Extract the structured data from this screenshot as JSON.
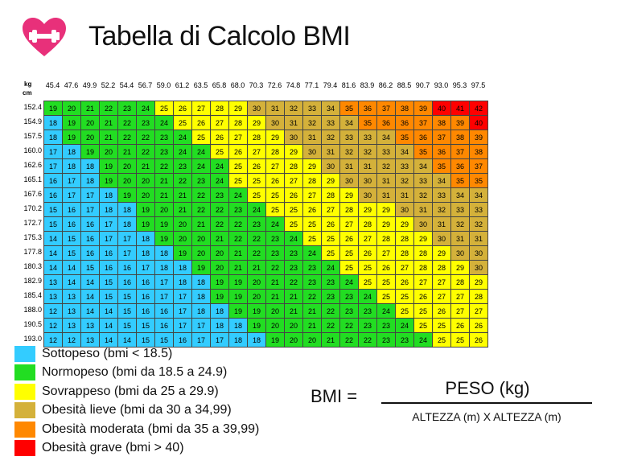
{
  "header": {
    "title": "Tabella di Calcolo BMI",
    "logo_icon": "heart-dumbbell-icon"
  },
  "table": {
    "weight_unit": "kg",
    "height_unit": "cm",
    "weights": [
      "45.4",
      "47.6",
      "49.9",
      "52.2",
      "54.4",
      "56.7",
      "59.0",
      "61.2",
      "63.5",
      "65.8",
      "68.0",
      "70.3",
      "72.6",
      "74.8",
      "77.1",
      "79.4",
      "81.6",
      "83.9",
      "86.2",
      "88.5",
      "90.7",
      "93.0",
      "95.3",
      "97.5"
    ],
    "heights": [
      "152.4",
      "154.9",
      "157.5",
      "160.0",
      "162.6",
      "165.1",
      "167.6",
      "170.2",
      "172.7",
      "175.3",
      "177.8",
      "180.3",
      "182.9",
      "185.4",
      "188.0",
      "190.5",
      "193.0"
    ],
    "rows": [
      [
        19,
        20,
        21,
        22,
        23,
        24,
        25,
        26,
        27,
        28,
        29,
        30,
        31,
        32,
        33,
        34,
        35,
        36,
        37,
        38,
        39,
        40,
        41,
        42
      ],
      [
        18,
        19,
        20,
        21,
        22,
        23,
        24,
        25,
        26,
        27,
        28,
        29,
        30,
        31,
        32,
        33,
        34,
        35,
        36,
        36,
        37,
        38,
        39,
        40
      ],
      [
        18,
        19,
        20,
        21,
        22,
        22,
        23,
        24,
        25,
        26,
        27,
        28,
        29,
        30,
        31,
        32,
        33,
        33,
        34,
        35,
        36,
        37,
        38,
        39
      ],
      [
        17,
        18,
        19,
        20,
        21,
        22,
        23,
        24,
        24,
        25,
        26,
        27,
        28,
        29,
        30,
        31,
        32,
        32,
        33,
        34,
        35,
        36,
        37,
        38
      ],
      [
        17,
        18,
        18,
        19,
        20,
        21,
        22,
        23,
        24,
        24,
        25,
        26,
        27,
        28,
        29,
        30,
        31,
        31,
        32,
        33,
        34,
        35,
        36,
        37
      ],
      [
        16,
        17,
        18,
        19,
        20,
        20,
        21,
        22,
        23,
        24,
        25,
        25,
        26,
        27,
        28,
        29,
        30,
        30,
        31,
        32,
        33,
        34,
        35,
        35
      ],
      [
        16,
        17,
        17,
        18,
        19,
        20,
        21,
        21,
        22,
        23,
        24,
        25,
        25,
        26,
        27,
        28,
        29,
        30,
        31,
        31,
        32,
        33,
        34,
        34
      ],
      [
        15,
        16,
        17,
        18,
        18,
        19,
        20,
        21,
        22,
        22,
        23,
        24,
        25,
        25,
        26,
        27,
        28,
        29,
        29,
        30,
        31,
        32,
        33,
        33
      ],
      [
        15,
        16,
        16,
        17,
        18,
        19,
        19,
        20,
        21,
        22,
        22,
        23,
        24,
        25,
        25,
        26,
        27,
        28,
        29,
        29,
        30,
        31,
        32,
        32
      ],
      [
        14,
        15,
        16,
        17,
        17,
        18,
        19,
        20,
        20,
        21,
        22,
        22,
        23,
        24,
        25,
        25,
        26,
        27,
        28,
        28,
        29,
        30,
        31,
        31
      ],
      [
        14,
        15,
        16,
        16,
        17,
        18,
        18,
        19,
        20,
        20,
        21,
        22,
        23,
        23,
        24,
        25,
        25,
        26,
        27,
        28,
        28,
        29,
        30,
        30
      ],
      [
        14,
        14,
        15,
        16,
        16,
        17,
        18,
        18,
        19,
        20,
        21,
        21,
        22,
        23,
        23,
        24,
        25,
        25,
        26,
        27,
        28,
        28,
        29,
        30
      ],
      [
        13,
        14,
        14,
        15,
        16,
        16,
        17,
        18,
        18,
        19,
        19,
        20,
        21,
        22,
        23,
        23,
        24,
        25,
        25,
        26,
        27,
        27,
        28,
        29
      ],
      [
        13,
        13,
        14,
        15,
        15,
        16,
        17,
        17,
        18,
        19,
        19,
        20,
        21,
        21,
        22,
        23,
        23,
        24,
        25,
        25,
        26,
        27,
        27,
        28
      ],
      [
        12,
        13,
        14,
        14,
        15,
        16,
        16,
        17,
        18,
        18,
        19,
        19,
        20,
        21,
        21,
        22,
        23,
        23,
        24,
        25,
        25,
        26,
        27,
        27
      ],
      [
        12,
        13,
        13,
        14,
        15,
        15,
        16,
        17,
        17,
        18,
        18,
        19,
        20,
        20,
        21,
        22,
        22,
        23,
        23,
        24,
        25,
        25,
        26,
        26
      ],
      [
        12,
        12,
        13,
        14,
        14,
        15,
        15,
        16,
        17,
        17,
        18,
        18,
        19,
        20,
        20,
        21,
        22,
        22,
        23,
        23,
        24,
        25,
        25,
        26
      ]
    ]
  },
  "legend": [
    {
      "label": "Sottopeso (bmi < 18.5)",
      "color": "#33CCFF"
    },
    {
      "label": "Normopeso (bmi da 18.5 a 24.9)",
      "color": "#22DD22"
    },
    {
      "label": "Sovrappeso (bmi da 25 a 29.9)",
      "color": "#FFFF00"
    },
    {
      "label": "Obesità lieve (bmi da 30 a 34,99)",
      "color": "#D4B13A"
    },
    {
      "label": "Obesità moderata (bmi da 35 a 39,99)",
      "color": "#FF8800"
    },
    {
      "label": "Obesità grave (bmi > 40)",
      "color": "#FF0000"
    }
  ],
  "formula": {
    "lhs": "BMI =",
    "numerator": "PESO (kg)",
    "denominator": "ALTEZZA (m) X ALTEZZA (m)"
  }
}
